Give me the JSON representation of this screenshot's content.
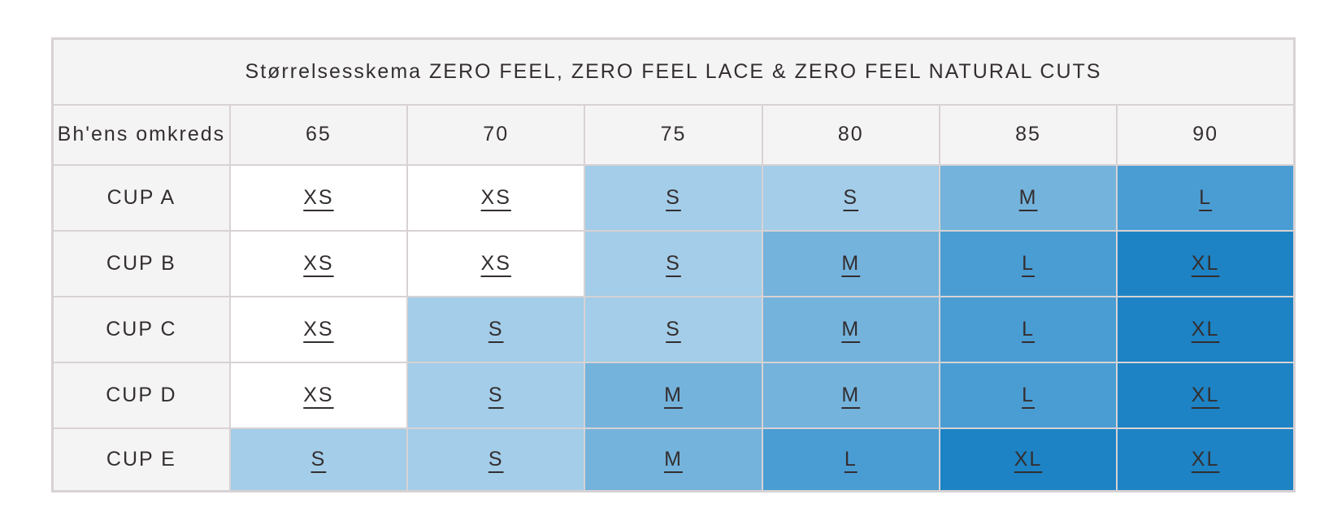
{
  "table": {
    "title": "Størrelsesskema ZERO FEEL, ZERO FEEL LACE & ZERO FEEL NATURAL CUTS",
    "header": {
      "label": "Bh'ens omkreds",
      "columns": [
        "65",
        "70",
        "75",
        "80",
        "85",
        "90"
      ]
    },
    "rows": [
      {
        "label": "CUP A",
        "sizes": [
          "XS",
          "XS",
          "S",
          "S",
          "M",
          "L"
        ]
      },
      {
        "label": "CUP B",
        "sizes": [
          "XS",
          "XS",
          "S",
          "M",
          "L",
          "XL"
        ]
      },
      {
        "label": "CUP C",
        "sizes": [
          "XS",
          "S",
          "S",
          "M",
          "L",
          "XL"
        ]
      },
      {
        "label": "CUP D",
        "sizes": [
          "XS",
          "S",
          "M",
          "M",
          "L",
          "XL"
        ]
      },
      {
        "label": "CUP E",
        "sizes": [
          "S",
          "S",
          "M",
          "L",
          "XL",
          "XL"
        ]
      }
    ],
    "size_colors": {
      "XS": "#ffffff",
      "S": "#a3cde8",
      "M": "#74b3dc",
      "L": "#4a9dd3",
      "XL": "#1d83c4"
    }
  }
}
